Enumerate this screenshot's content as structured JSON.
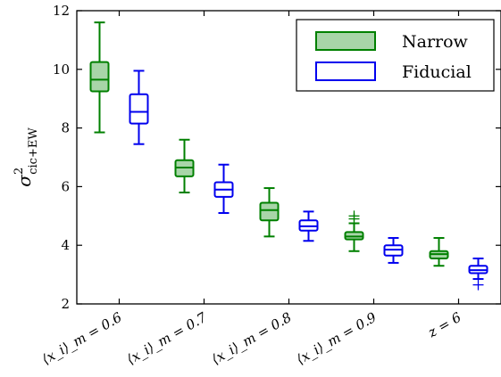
{
  "chart_data": {
    "type": "box",
    "ylabel_symbol": "σ",
    "ylabel_sup": "2",
    "ylabel_sub": "cic+EW",
    "ylim": [
      2,
      12
    ],
    "yticks": [
      2,
      4,
      6,
      8,
      10,
      12
    ],
    "categories": [
      "⟨x_i⟩_m = 0.6",
      "⟨x_i⟩_m = 0.7",
      "⟨x_i⟩_m = 0.8",
      "⟨x_i⟩_m = 0.9",
      "z = 6"
    ],
    "legend_position": "top-right",
    "series": [
      {
        "name": "Narrow",
        "color": "#008000",
        "fill": "#a8d5a8",
        "boxes": [
          {
            "whislo": 7.85,
            "q1": 9.25,
            "med": 9.65,
            "q3": 10.25,
            "whishi": 11.6,
            "fliers": []
          },
          {
            "whislo": 5.8,
            "q1": 6.35,
            "med": 6.65,
            "q3": 6.9,
            "whishi": 7.6,
            "fliers": []
          },
          {
            "whislo": 4.3,
            "q1": 4.85,
            "med": 5.2,
            "q3": 5.45,
            "whishi": 5.95,
            "fliers": []
          },
          {
            "whislo": 3.8,
            "q1": 4.2,
            "med": 4.3,
            "q3": 4.45,
            "whishi": 4.75,
            "fliers": [
              5.0,
              4.9
            ]
          },
          {
            "whislo": 3.3,
            "q1": 3.55,
            "med": 3.7,
            "q3": 3.8,
            "whishi": 4.25,
            "fliers": []
          }
        ]
      },
      {
        "name": "Fiducial",
        "color": "#0000ee",
        "fill": "#ffffff",
        "boxes": [
          {
            "whislo": 7.45,
            "q1": 8.15,
            "med": 8.55,
            "q3": 9.15,
            "whishi": 9.95,
            "fliers": []
          },
          {
            "whislo": 5.1,
            "q1": 5.65,
            "med": 5.9,
            "q3": 6.15,
            "whishi": 6.75,
            "fliers": []
          },
          {
            "whislo": 4.15,
            "q1": 4.5,
            "med": 4.65,
            "q3": 4.85,
            "whishi": 5.15,
            "fliers": []
          },
          {
            "whislo": 3.4,
            "q1": 3.65,
            "med": 3.85,
            "q3": 4.0,
            "whishi": 4.25,
            "fliers": []
          },
          {
            "whislo": 2.85,
            "q1": 3.05,
            "med": 3.15,
            "q3": 3.3,
            "whishi": 3.55,
            "fliers": [
              2.65
            ]
          }
        ]
      }
    ]
  }
}
